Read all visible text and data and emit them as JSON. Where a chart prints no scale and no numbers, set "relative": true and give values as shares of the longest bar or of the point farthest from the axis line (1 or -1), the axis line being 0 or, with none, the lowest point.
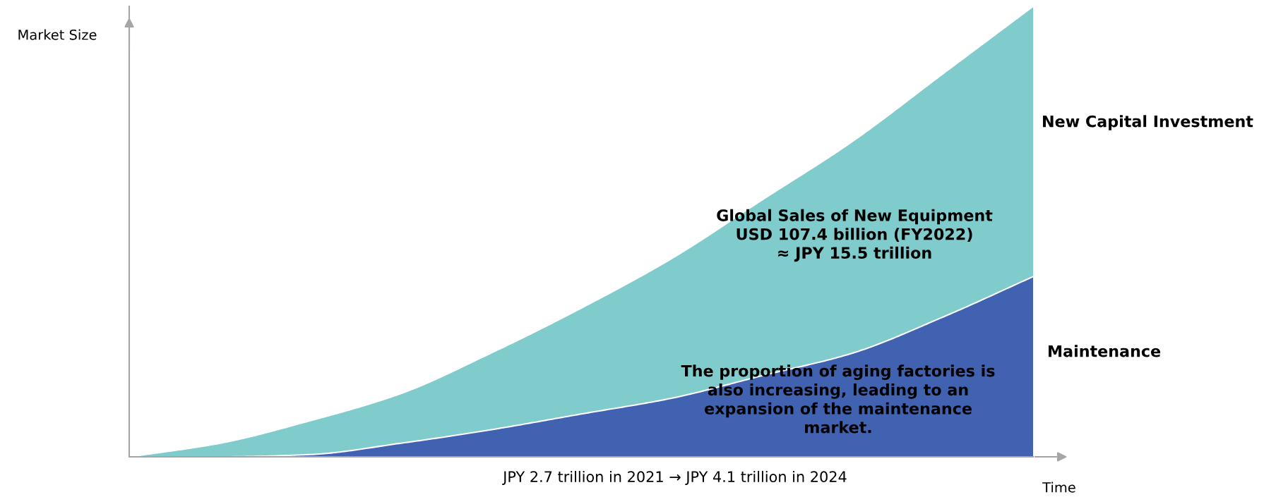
{
  "chart_data": {
    "type": "area",
    "stacked": true,
    "relative": true,
    "xlabel": "Time",
    "ylabel": "Market Size",
    "categories": [
      null,
      null,
      null,
      null,
      null,
      null,
      null,
      null,
      null,
      null,
      null
    ],
    "series": [
      {
        "name": "Maintenance",
        "color": "#4062b0",
        "values": [
          0,
          0,
          0.005,
          0.03,
          0.06,
          0.095,
          0.13,
          0.18,
          0.23,
          0.31,
          0.4
        ]
      },
      {
        "name": "New Capital Investment",
        "color": "#80cbcb",
        "values": [
          0,
          0.03,
          0.075,
          0.11,
          0.17,
          0.235,
          0.31,
          0.39,
          0.47,
          0.54,
          0.6
        ]
      }
    ],
    "annotations": [
      "Global Sales of New Equipment\nUSD 107.4 billion (FY2022)\n≈ JPY 15.5 trillion",
      "The proportion of aging factories is\nalso increasing, leading to an\nexpansion of the maintenance\nmarket.",
      "JPY 2.7 trillion in 2021 → JPY 4.1 trillion in 2024"
    ],
    "marker": "none"
  }
}
